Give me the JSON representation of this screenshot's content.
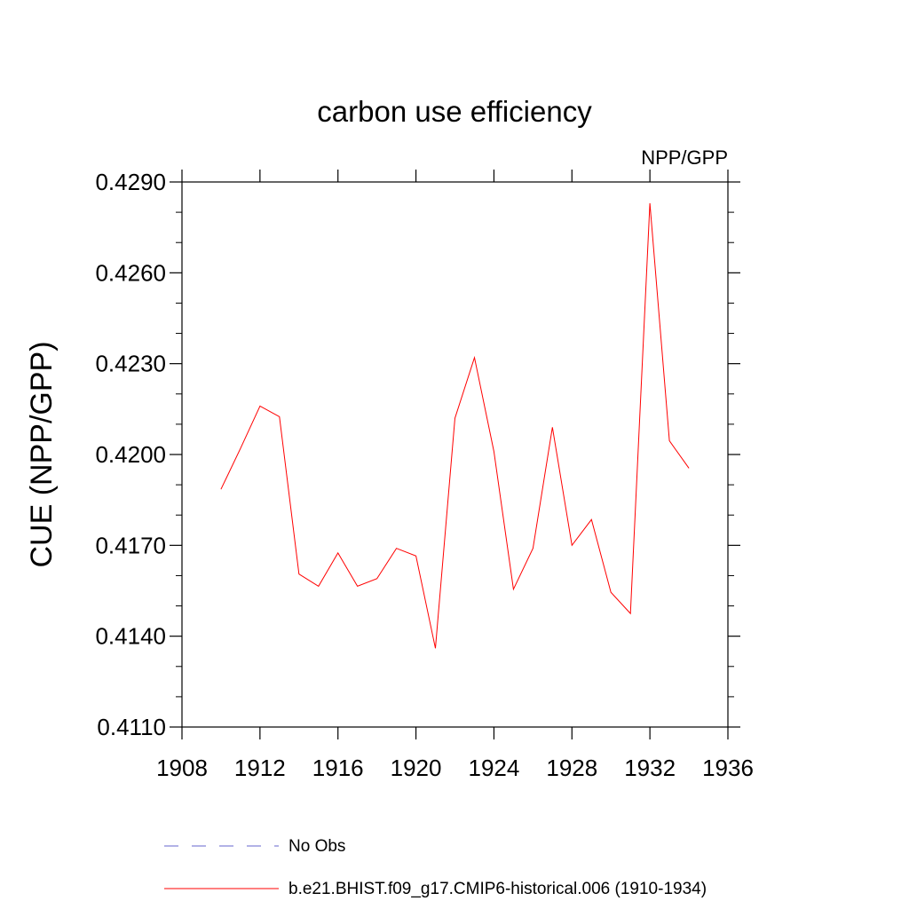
{
  "chart_data": {
    "type": "line",
    "title": "carbon use efficiency",
    "subtitle": "NPP/GPP",
    "xlabel": "",
    "ylabel": "CUE  (NPP/GPP)",
    "xlim": [
      1908,
      1936
    ],
    "ylim": [
      0.411,
      0.429
    ],
    "x_ticks": [
      1908,
      1912,
      1916,
      1920,
      1924,
      1928,
      1932,
      1936
    ],
    "x_tick_labels": [
      "1908",
      "1912",
      "1916",
      "1920",
      "1924",
      "1928",
      "1932",
      "1936"
    ],
    "y_ticks": [
      0.411,
      0.414,
      0.417,
      0.42,
      0.423,
      0.426,
      0.429
    ],
    "y_tick_labels": [
      "0.4110",
      "0.4140",
      "0.4170",
      "0.4200",
      "0.4230",
      "0.4260",
      "0.4290"
    ],
    "grid": false,
    "legend_position": "bottom",
    "series": [
      {
        "name": "No Obs",
        "color": "#6666cc",
        "style": "dashed",
        "x": [],
        "y": []
      },
      {
        "name": "b.e21.BHIST.f09_g17.CMIP6-historical.006 (1910-1934)",
        "color": "#ff0000",
        "style": "solid",
        "x": [
          1910,
          1911,
          1912,
          1913,
          1914,
          1915,
          1916,
          1917,
          1918,
          1919,
          1920,
          1921,
          1922,
          1923,
          1924,
          1925,
          1926,
          1927,
          1928,
          1929,
          1930,
          1931,
          1932,
          1933,
          1934
        ],
        "y": [
          0.41885,
          0.4202,
          0.4216,
          0.42125,
          0.41605,
          0.41565,
          0.41675,
          0.41565,
          0.4159,
          0.4169,
          0.41665,
          0.4136,
          0.4212,
          0.4232,
          0.4201,
          0.41555,
          0.4169,
          0.4209,
          0.417,
          0.41785,
          0.41545,
          0.41475,
          0.4283,
          0.42045,
          0.41955
        ]
      }
    ]
  }
}
